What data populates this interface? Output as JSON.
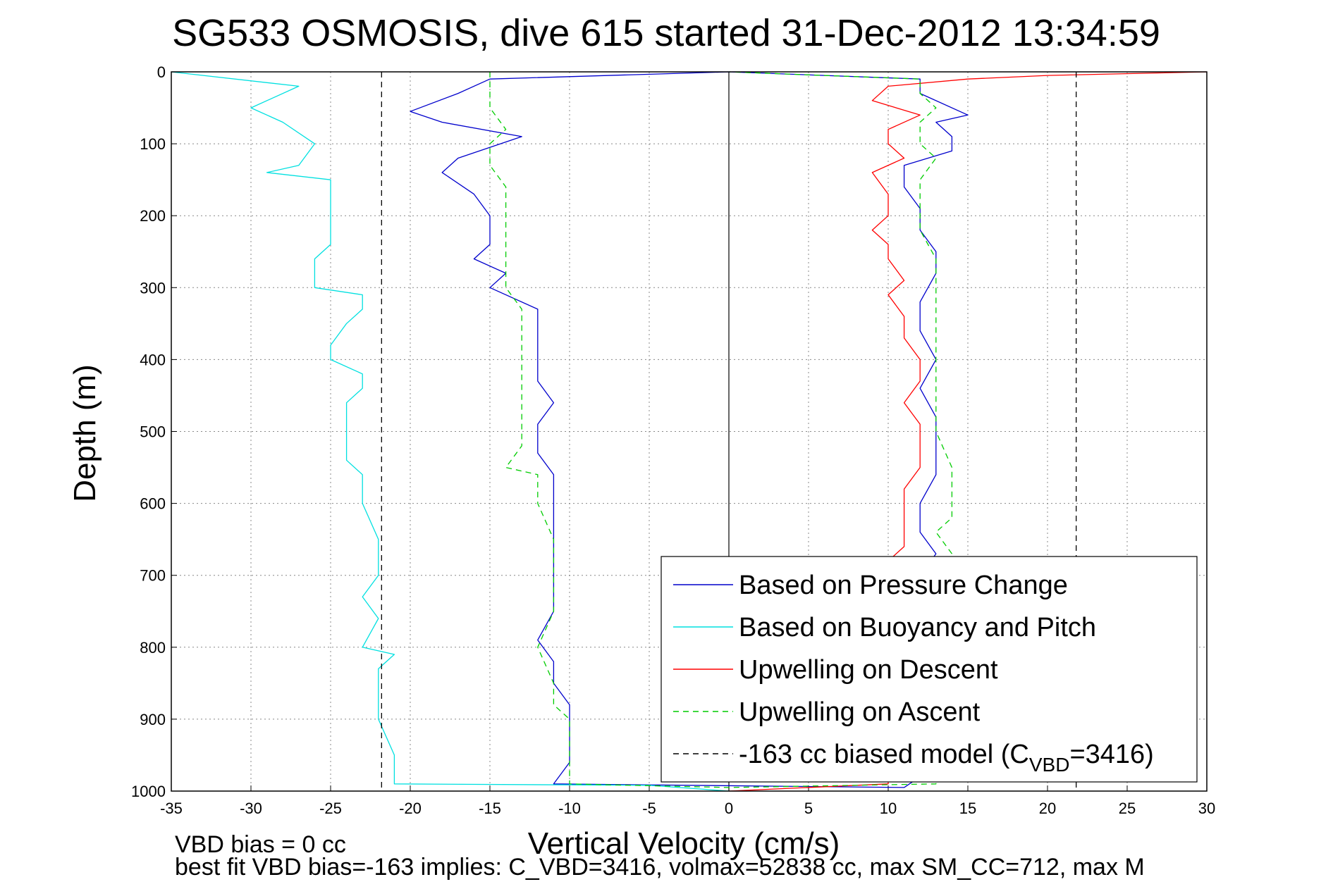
{
  "chart_data": {
    "type": "line",
    "title": "SG533 OSMOSIS, dive 615 started 31-Dec-2012 13:34:59",
    "xlabel": "Vertical Velocity (cm/s)",
    "ylabel": "Depth (m)",
    "xlim": [
      -35,
      30
    ],
    "ylim": [
      1000,
      0
    ],
    "y_reversed": true,
    "grid": true,
    "x_ticks": [
      "-35",
      "-30",
      "-25",
      "-20",
      "-15",
      "-10",
      "-5",
      "0",
      "5",
      "10",
      "15",
      "20",
      "25",
      "30"
    ],
    "y_ticks": [
      "0",
      "100",
      "200",
      "300",
      "400",
      "500",
      "600",
      "700",
      "800",
      "900",
      "1000"
    ],
    "legend_position": "bottom-right",
    "series": [
      {
        "name": "Based on Pressure Change",
        "color": "#0000cc",
        "style": "solid",
        "points": [
          [
            0,
            0
          ],
          [
            -15,
            10
          ],
          [
            -17,
            30
          ],
          [
            -20,
            55
          ],
          [
            -18,
            70
          ],
          [
            -13,
            90
          ],
          [
            -17,
            120
          ],
          [
            -18,
            140
          ],
          [
            -16,
            170
          ],
          [
            -15,
            200
          ],
          [
            -15,
            240
          ],
          [
            -16,
            260
          ],
          [
            -14,
            280
          ],
          [
            -15,
            300
          ],
          [
            -12,
            330
          ],
          [
            -12,
            360
          ],
          [
            -12,
            400
          ],
          [
            -12,
            430
          ],
          [
            -11,
            460
          ],
          [
            -12,
            490
          ],
          [
            -12,
            530
          ],
          [
            -11,
            560
          ],
          [
            -11,
            600
          ],
          [
            -11,
            650
          ],
          [
            -11,
            700
          ],
          [
            -11,
            750
          ],
          [
            -12,
            790
          ],
          [
            -11,
            820
          ],
          [
            -11,
            850
          ],
          [
            -10,
            880
          ],
          [
            -10,
            920
          ],
          [
            -10,
            960
          ],
          [
            -11,
            990
          ],
          [
            11,
            995
          ],
          [
            12,
            980
          ],
          [
            12,
            900
          ],
          [
            12,
            800
          ],
          [
            12,
            700
          ],
          [
            13,
            670
          ],
          [
            12,
            640
          ],
          [
            12,
            600
          ],
          [
            13,
            560
          ],
          [
            13,
            520
          ],
          [
            13,
            480
          ],
          [
            12,
            440
          ],
          [
            13,
            400
          ],
          [
            12,
            360
          ],
          [
            12,
            320
          ],
          [
            13,
            280
          ],
          [
            13,
            250
          ],
          [
            12,
            220
          ],
          [
            12,
            190
          ],
          [
            11,
            160
          ],
          [
            11,
            130
          ],
          [
            14,
            110
          ],
          [
            14,
            90
          ],
          [
            13,
            70
          ],
          [
            15,
            60
          ],
          [
            12,
            30
          ],
          [
            12,
            10
          ],
          [
            0,
            0
          ]
        ]
      },
      {
        "name": "Based on Buoyancy and Pitch",
        "color": "#00e0e0",
        "style": "solid",
        "points": [
          [
            -35,
            0
          ],
          [
            -27,
            20
          ],
          [
            -30,
            50
          ],
          [
            -28,
            70
          ],
          [
            -26,
            100
          ],
          [
            -27,
            130
          ],
          [
            -29,
            140
          ],
          [
            -25,
            150
          ],
          [
            -25,
            200
          ],
          [
            -25,
            240
          ],
          [
            -26,
            260
          ],
          [
            -26,
            300
          ],
          [
            -23,
            310
          ],
          [
            -23,
            330
          ],
          [
            -24,
            350
          ],
          [
            -25,
            380
          ],
          [
            -25,
            400
          ],
          [
            -23,
            420
          ],
          [
            -23,
            440
          ],
          [
            -24,
            460
          ],
          [
            -24,
            500
          ],
          [
            -24,
            540
          ],
          [
            -23,
            560
          ],
          [
            -23,
            600
          ],
          [
            -22,
            650
          ],
          [
            -22,
            700
          ],
          [
            -23,
            730
          ],
          [
            -22,
            760
          ],
          [
            -23,
            800
          ],
          [
            -21,
            810
          ],
          [
            -22,
            830
          ],
          [
            -22,
            860
          ],
          [
            -22,
            900
          ],
          [
            -21,
            950
          ],
          [
            -21,
            990
          ],
          [
            -5,
            992
          ],
          [
            0,
            1000
          ]
        ]
      },
      {
        "name": "Upwelling on Descent",
        "color": "#ff0000",
        "style": "solid",
        "points": [
          [
            30,
            0
          ],
          [
            20,
            5
          ],
          [
            15,
            10
          ],
          [
            10,
            20
          ],
          [
            9,
            40
          ],
          [
            12,
            60
          ],
          [
            10,
            80
          ],
          [
            10,
            100
          ],
          [
            11,
            120
          ],
          [
            9,
            140
          ],
          [
            10,
            170
          ],
          [
            10,
            200
          ],
          [
            9,
            220
          ],
          [
            10,
            240
          ],
          [
            10,
            260
          ],
          [
            11,
            290
          ],
          [
            10,
            310
          ],
          [
            11,
            340
          ],
          [
            11,
            370
          ],
          [
            12,
            400
          ],
          [
            12,
            430
          ],
          [
            11,
            460
          ],
          [
            12,
            490
          ],
          [
            12,
            520
          ],
          [
            12,
            550
          ],
          [
            11,
            580
          ],
          [
            11,
            610
          ],
          [
            11,
            640
          ],
          [
            11,
            660
          ],
          [
            10,
            680
          ],
          [
            10,
            990
          ],
          [
            0,
            1000
          ]
        ]
      },
      {
        "name": "Upwelling on Ascent",
        "color": "#00cc00",
        "style": "dashed",
        "points": [
          [
            -15,
            0
          ],
          [
            -15,
            20
          ],
          [
            -15,
            50
          ],
          [
            -14,
            80
          ],
          [
            -15,
            100
          ],
          [
            -15,
            130
          ],
          [
            -14,
            160
          ],
          [
            -14,
            200
          ],
          [
            -14,
            240
          ],
          [
            -14,
            260
          ],
          [
            -14,
            300
          ],
          [
            -13,
            330
          ],
          [
            -13,
            370
          ],
          [
            -13,
            400
          ],
          [
            -13,
            430
          ],
          [
            -13,
            460
          ],
          [
            -13,
            480
          ],
          [
            -13,
            520
          ],
          [
            -14,
            550
          ],
          [
            -12,
            560
          ],
          [
            -12,
            600
          ],
          [
            -11,
            650
          ],
          [
            -11,
            700
          ],
          [
            -11,
            750
          ],
          [
            -12,
            800
          ],
          [
            -11,
            850
          ],
          [
            -11,
            880
          ],
          [
            -10,
            900
          ],
          [
            -10,
            950
          ],
          [
            -10,
            990
          ],
          [
            0,
            995
          ],
          [
            13,
            990
          ],
          [
            13,
            900
          ],
          [
            14,
            800
          ],
          [
            14,
            700
          ],
          [
            14,
            670
          ],
          [
            13,
            640
          ],
          [
            14,
            620
          ],
          [
            14,
            580
          ],
          [
            14,
            550
          ],
          [
            13,
            500
          ],
          [
            13,
            460
          ],
          [
            13,
            420
          ],
          [
            13,
            380
          ],
          [
            13,
            340
          ],
          [
            13,
            300
          ],
          [
            13,
            260
          ],
          [
            12,
            220
          ],
          [
            12,
            190
          ],
          [
            12,
            150
          ],
          [
            13,
            120
          ],
          [
            12,
            100
          ],
          [
            12,
            70
          ],
          [
            13,
            50
          ],
          [
            12,
            30
          ],
          [
            12,
            10
          ],
          [
            0,
            0
          ]
        ]
      },
      {
        "name": "-163 cc biased model (C_VBD=3416)",
        "color": "#000000",
        "style": "dashed",
        "lines": [
          [
            [
              -21.8,
              0
            ],
            [
              -21.8,
              1000
            ]
          ],
          [
            [
              21.8,
              0
            ],
            [
              21.8,
              1000
            ]
          ]
        ]
      }
    ]
  },
  "legend": {
    "items": [
      {
        "label": "Based on Pressure Change",
        "color": "#0000cc",
        "dash": false
      },
      {
        "label": "Based on Buoyancy and Pitch",
        "color": "#00e0e0",
        "dash": false
      },
      {
        "label": "Upwelling on Descent",
        "color": "#ff0000",
        "dash": false
      },
      {
        "label": "Upwelling on Ascent",
        "color": "#00cc00",
        "dash": true
      },
      {
        "label_main": "-163 cc biased model (C",
        "label_sub": "VBD",
        "label_end": "=3416)",
        "color": "#000000",
        "dash": true
      }
    ]
  },
  "footer": {
    "line1": "VBD bias = 0 cc",
    "line2": "best fit VBD bias=-163 implies: C_VBD=3416, volmax=52838 cc, max SM_CC=712, max M"
  }
}
